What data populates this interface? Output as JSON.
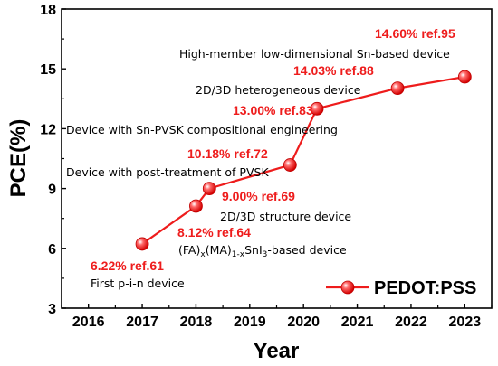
{
  "chart_data": {
    "type": "line",
    "xlabel": "Year",
    "ylabel": "PCE(%)",
    "xlim": [
      2015.5,
      2023.5
    ],
    "ylim": [
      3,
      18
    ],
    "x_ticks": [
      "2016",
      "2017",
      "2018",
      "2019",
      "2020",
      "2021",
      "2022",
      "2023"
    ],
    "y_ticks": [
      "3",
      "6",
      "9",
      "12",
      "15",
      "18"
    ],
    "grid": false,
    "legend": "bottom-right",
    "series": [
      {
        "name": "PEDOT:PSS",
        "color": "#ee1c1c",
        "x": [
          2017.0,
          2018.0,
          2018.25,
          2019.75,
          2020.25,
          2021.75,
          2023.0
        ],
        "y": [
          6.22,
          8.12,
          9.0,
          10.18,
          13.0,
          14.03,
          14.6
        ]
      }
    ],
    "annotations": [
      {
        "value_label": "6.22% ref.61",
        "description": "First p-i-n device",
        "formula": null
      },
      {
        "value_label": "8.12% ref.64",
        "description": null,
        "formula": {
          "base": "(FA)",
          "sub1": "x",
          "mid": "(MA)",
          "sub2": "1-x",
          "mid2": "SnI",
          "sub3": "3",
          "tail": "-based device"
        }
      },
      {
        "value_label": "9.00% ref.69",
        "description": "2D/3D structure device",
        "formula": null
      },
      {
        "value_label": "10.18% ref.72",
        "description": "Device with post-treatment of PVSK",
        "formula": null
      },
      {
        "value_label": "13.00% ref.83",
        "description": "Device with Sn-PVSK compositional engineering",
        "formula": null
      },
      {
        "value_label": "14.03% ref.88",
        "description": "2D/3D heterogeneous device",
        "formula": null
      },
      {
        "value_label": "14.60% ref.95",
        "description": "High-member low-dimensional Sn-based device",
        "formula": null
      }
    ]
  }
}
